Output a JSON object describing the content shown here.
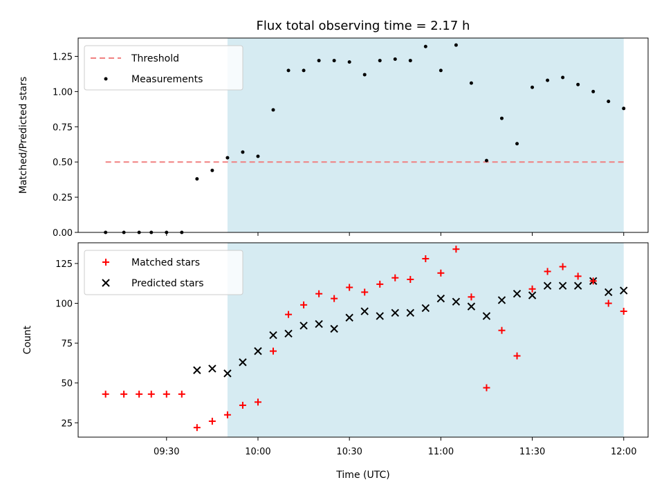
{
  "chart_data": [
    {
      "type": "scatter",
      "title": "Flux total observing time = 2.17 h",
      "xlabel": "",
      "ylabel": "Matched/Predicted stars",
      "ylim": [
        0,
        1.38
      ],
      "yticks": [
        "0.00",
        "0.25",
        "0.50",
        "0.75",
        "1.00",
        "1.25"
      ],
      "ytick_values": [
        0,
        0.25,
        0.5,
        0.75,
        1.0,
        1.25
      ],
      "observing_window": [
        "09:50",
        "12:00"
      ],
      "threshold": {
        "name": "Threshold",
        "value": 0.5,
        "x_range": [
          "09:10",
          "12:00"
        ],
        "color": "#f08080"
      },
      "series": [
        {
          "name": "Measurements",
          "marker": "dot",
          "color": "#000000",
          "x": [
            "09:10",
            "09:16",
            "09:21",
            "09:25",
            "09:30",
            "09:35",
            "09:40",
            "09:45",
            "09:50",
            "09:55",
            "10:00",
            "10:05",
            "10:10",
            "10:15",
            "10:20",
            "10:25",
            "10:30",
            "10:35",
            "10:40",
            "10:45",
            "10:50",
            "10:55",
            "11:00",
            "11:05",
            "11:10",
            "11:15",
            "11:20",
            "11:25",
            "11:30",
            "11:35",
            "11:40",
            "11:45",
            "11:50",
            "11:55",
            "12:00"
          ],
          "values": [
            0,
            0,
            0,
            0,
            0,
            0,
            0.38,
            0.44,
            0.53,
            0.57,
            0.54,
            0.87,
            1.15,
            1.15,
            1.22,
            1.22,
            1.21,
            1.12,
            1.22,
            1.23,
            1.22,
            1.32,
            1.15,
            1.33,
            1.06,
            0.51,
            0.81,
            0.63,
            1.03,
            1.08,
            1.1,
            1.05,
            1.0,
            0.93,
            0.88
          ]
        }
      ],
      "legend_position": "upper-left"
    },
    {
      "type": "scatter",
      "xlabel": "Time (UTC)",
      "ylabel": "Count",
      "ylim": [
        16,
        138
      ],
      "yticks": [
        "25",
        "50",
        "75",
        "100",
        "125"
      ],
      "ytick_values": [
        25,
        50,
        75,
        100,
        125
      ],
      "xticks": [
        "09:30",
        "10:00",
        "10:30",
        "11:00",
        "11:30",
        "12:00"
      ],
      "xlim": [
        "09:01",
        "12:08"
      ],
      "observing_window": [
        "09:50",
        "12:00"
      ],
      "series": [
        {
          "name": "Matched stars",
          "marker": "plus",
          "color": "#ff0000",
          "x": [
            "09:10",
            "09:16",
            "09:21",
            "09:25",
            "09:30",
            "09:35",
            "09:40",
            "09:45",
            "09:50",
            "09:55",
            "10:00",
            "10:05",
            "10:10",
            "10:15",
            "10:20",
            "10:25",
            "10:30",
            "10:35",
            "10:40",
            "10:45",
            "10:50",
            "10:55",
            "11:00",
            "11:05",
            "11:10",
            "11:15",
            "11:20",
            "11:25",
            "11:30",
            "11:35",
            "11:40",
            "11:45",
            "11:50",
            "11:55",
            "12:00"
          ],
          "values": [
            43,
            43,
            43,
            43,
            43,
            43,
            22,
            26,
            30,
            36,
            38,
            70,
            93,
            99,
            106,
            103,
            110,
            107,
            112,
            116,
            115,
            128,
            119,
            134,
            104,
            47,
            83,
            67,
            109,
            120,
            123,
            117,
            114,
            100,
            95
          ]
        },
        {
          "name": "Predicted stars",
          "marker": "x",
          "color": "#000000",
          "x": [
            "09:40",
            "09:45",
            "09:50",
            "09:55",
            "10:00",
            "10:05",
            "10:10",
            "10:15",
            "10:20",
            "10:25",
            "10:30",
            "10:35",
            "10:40",
            "10:45",
            "10:50",
            "10:55",
            "11:00",
            "11:05",
            "11:10",
            "11:15",
            "11:20",
            "11:25",
            "11:30",
            "11:35",
            "11:40",
            "11:45",
            "11:50",
            "11:55",
            "12:00"
          ],
          "values": [
            58,
            59,
            56,
            63,
            70,
            80,
            81,
            86,
            87,
            84,
            91,
            95,
            92,
            94,
            94,
            97,
            103,
            101,
            98,
            92,
            102,
            106,
            105,
            111,
            111,
            111,
            114,
            107,
            108
          ]
        }
      ],
      "legend_position": "upper-left"
    }
  ]
}
